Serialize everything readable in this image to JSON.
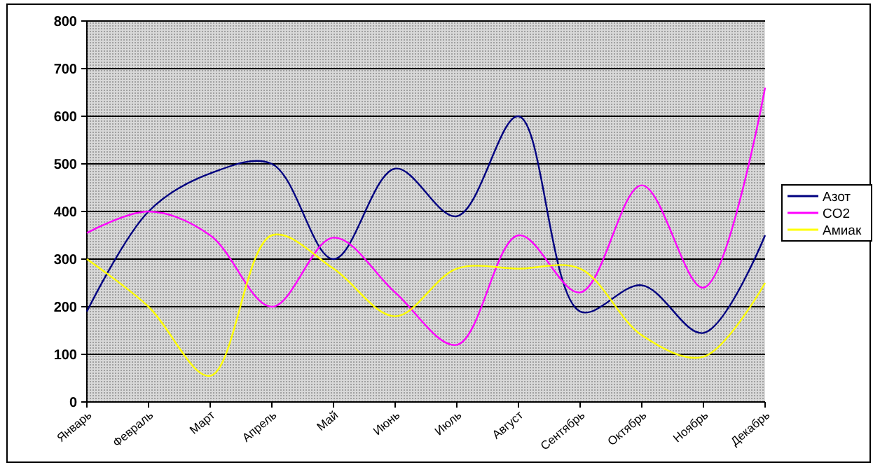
{
  "chart_data": {
    "type": "line",
    "categories": [
      "Январь",
      "Февраль",
      "Март",
      "Апрель",
      "Май",
      "Июнь",
      "Июль",
      "Август",
      "Сентябрь",
      "Октябрь",
      "Ноябрь",
      "Декабрь"
    ],
    "series": [
      {
        "name": "Азот",
        "color": "#000080",
        "values": [
          190,
          400,
          480,
          500,
          300,
          490,
          390,
          600,
          190,
          245,
          145,
          350
        ]
      },
      {
        "name": "CO2",
        "color": "#ff00ff",
        "values": [
          355,
          400,
          350,
          200,
          345,
          230,
          120,
          350,
          230,
          455,
          240,
          660
        ]
      },
      {
        "name": "Амиак",
        "color": "#ffff00",
        "values": [
          300,
          200,
          55,
          350,
          280,
          180,
          280,
          280,
          280,
          140,
          95,
          250
        ]
      }
    ],
    "ylim": [
      0,
      800
    ],
    "yticks": [
      0,
      100,
      200,
      300,
      400,
      500,
      600,
      700,
      800
    ],
    "grid": "y",
    "legend": "right",
    "marker": "none",
    "line_style": "solid"
  }
}
